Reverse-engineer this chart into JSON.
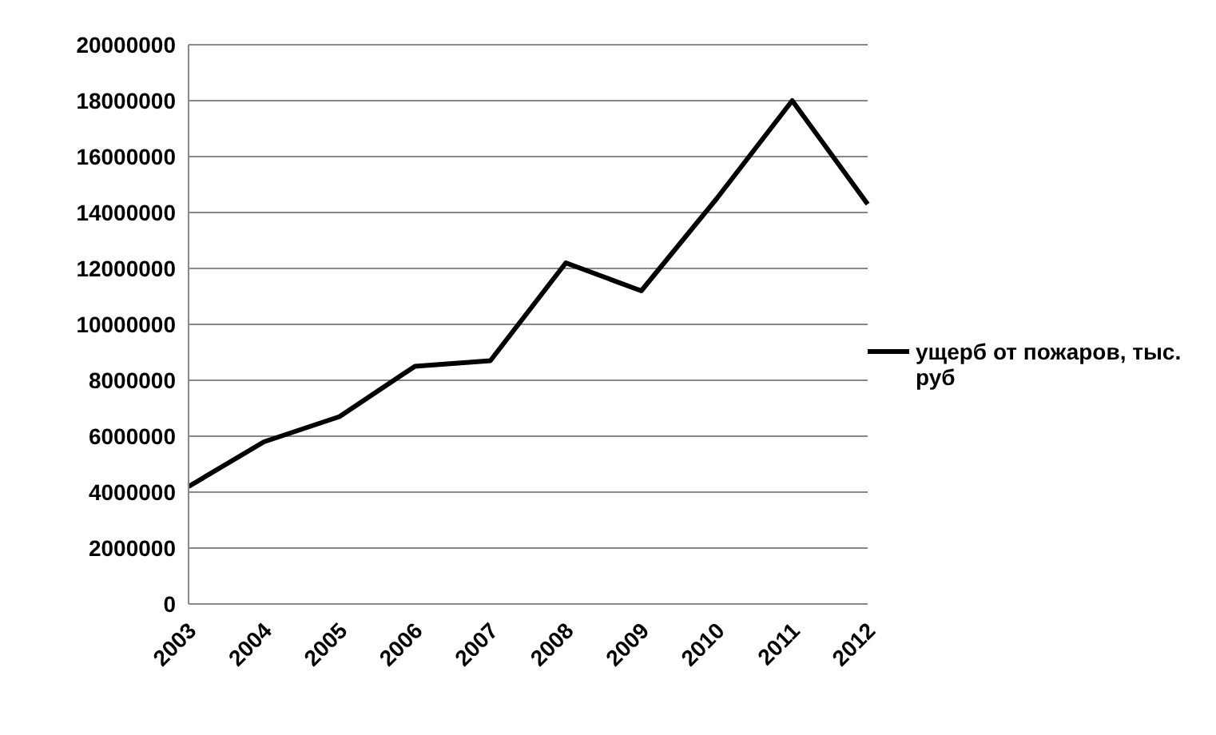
{
  "chart_data": {
    "type": "line",
    "categories": [
      "2003",
      "2004",
      "2005",
      "2006",
      "2007",
      "2008",
      "2009",
      "2010",
      "2011",
      "2012"
    ],
    "series": [
      {
        "name": "ущерб от пожаров, тыс. руб",
        "color": "#000000",
        "values": [
          4200000,
          5800000,
          6700000,
          8500000,
          8700000,
          12200000,
          11200000,
          14500000,
          18000000,
          14300000
        ]
      }
    ],
    "ylim": [
      0,
      20000000
    ],
    "yticks": [
      0,
      2000000,
      4000000,
      6000000,
      8000000,
      10000000,
      12000000,
      14000000,
      16000000,
      18000000,
      20000000
    ],
    "grid": "y",
    "legend": "right",
    "marker": "none",
    "line_style": "solid"
  }
}
